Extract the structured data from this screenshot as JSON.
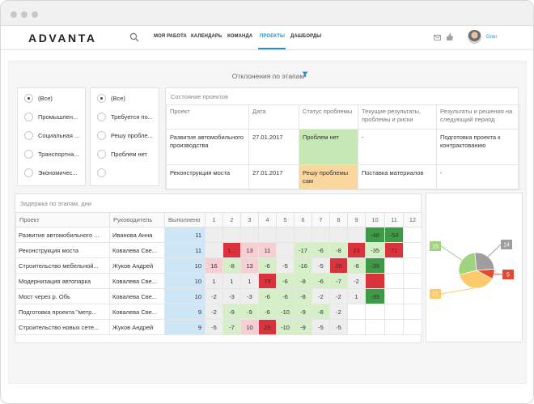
{
  "app": {
    "logo_text": "ADVANTA",
    "user_name": "Олег"
  },
  "nav": [
    {
      "label": "МОЯ РАБОТА"
    },
    {
      "label": "КАЛЕНДАРЬ"
    },
    {
      "label": "КОМАНДА"
    },
    {
      "label": "ПРОЕКТЫ",
      "active": true
    },
    {
      "label": "ДАШБОРДЫ"
    }
  ],
  "page": {
    "title": "Отклонения по этапам"
  },
  "filter1": {
    "options": [
      {
        "label": "(Все)",
        "selected": true
      },
      {
        "label": "Промышлен...",
        "selected": false
      },
      {
        "label": "Социальная ...",
        "selected": false
      },
      {
        "label": "Транспортна...",
        "selected": false
      },
      {
        "label": "Экономичес...",
        "selected": false
      }
    ]
  },
  "filter2": {
    "options": [
      {
        "label": "(Все)",
        "selected": true
      },
      {
        "label": "Требуется по...",
        "selected": false
      },
      {
        "label": "Решу пробле...",
        "selected": false
      },
      {
        "label": "Проблем нет",
        "selected": false
      },
      {
        "label": "",
        "selected": false
      }
    ]
  },
  "status_panel": {
    "title": "Состояние проектов",
    "headers": [
      "Проект",
      "Дата",
      "Статус проблемы",
      "Текущие результаты, проблемы и риски",
      "Результаты и решения на следующий период"
    ],
    "rows": [
      {
        "project": "Развитие автомобильного производства",
        "date": "27.01.2017",
        "status": "Проблем нет",
        "current": "-",
        "next": "Подготовка проекта к контрактованию",
        "status_color": "#c5e8b4"
      },
      {
        "project": "Реконструкция моста",
        "date": "27.01.2017",
        "status": "Решу проблемы сам",
        "current": "Поставка материалов",
        "next": "-",
        "status_color": "#fbd7a0"
      }
    ]
  },
  "delay_panel": {
    "title": "Задержка по этапам, дни",
    "headers": [
      "Проект",
      "Руководитель",
      "Выполнено",
      "1",
      "2",
      "3",
      "4",
      "5",
      "6",
      "7",
      "8",
      "9",
      "10",
      "11",
      "12"
    ],
    "rows": [
      {
        "project": "Развитие автомобильного ...",
        "manager": "Иванова Анна",
        "done": "11",
        "cells": [
          {
            "v": "",
            "c": "g"
          },
          {
            "v": "",
            "c": "g"
          },
          {
            "v": "",
            "c": "g"
          },
          {
            "v": "",
            "c": "g"
          },
          {
            "v": "",
            "c": "g"
          },
          {
            "v": "",
            "c": "g"
          },
          {
            "v": "",
            "c": "g"
          },
          {
            "v": "",
            "c": "g"
          },
          {
            "v": "",
            "c": "g"
          },
          {
            "v": "-48",
            "c": "dg"
          },
          {
            "v": "-54",
            "c": "dg"
          },
          {
            "v": "",
            "c": "w"
          }
        ]
      },
      {
        "project": "Реконструкция моста",
        "manager": "Ковалева Све...",
        "done": "11",
        "cells": [
          {
            "v": "",
            "c": "g"
          },
          {
            "v": "1...",
            "c": "dr"
          },
          {
            "v": "13",
            "c": "lr"
          },
          {
            "v": "11",
            "c": "lr"
          },
          {
            "v": "",
            "c": "g"
          },
          {
            "v": "-17",
            "c": "lg"
          },
          {
            "v": "-6",
            "c": "lg"
          },
          {
            "v": "-8",
            "c": "lg"
          },
          {
            "v": "23",
            "c": "dr"
          },
          {
            "v": "-35",
            "c": "lg"
          },
          {
            "v": "71",
            "c": "dr"
          },
          {
            "v": "",
            "c": "w"
          }
        ]
      },
      {
        "project": "Строительство мебельной...",
        "manager": "Жуков Андрей",
        "done": "10",
        "cells": [
          {
            "v": "16",
            "c": "lr"
          },
          {
            "v": "-8",
            "c": "lg"
          },
          {
            "v": "13",
            "c": "lr"
          },
          {
            "v": "-6",
            "c": "lg"
          },
          {
            "v": "-5",
            "c": "g"
          },
          {
            "v": "-16",
            "c": "lg"
          },
          {
            "v": "-5",
            "c": "g"
          },
          {
            "v": "26",
            "c": "dr"
          },
          {
            "v": "-6",
            "c": "lg"
          },
          {
            "v": "-39",
            "c": "dg"
          },
          {
            "v": "",
            "c": "w"
          },
          {
            "v": "",
            "c": "w"
          }
        ]
      },
      {
        "project": "Модернизация автопарка",
        "manager": "Ковалева Све...",
        "done": "10",
        "cells": [
          {
            "v": "1",
            "c": "g"
          },
          {
            "v": "1",
            "c": "g"
          },
          {
            "v": "1",
            "c": "g"
          },
          {
            "v": "79",
            "c": "dr"
          },
          {
            "v": "-6",
            "c": "lg"
          },
          {
            "v": "-8",
            "c": "lg"
          },
          {
            "v": "-6",
            "c": "lg"
          },
          {
            "v": "-7",
            "c": "lg"
          },
          {
            "v": "-2",
            "c": "g"
          },
          {
            "v": "",
            "c": "dr"
          },
          {
            "v": "",
            "c": "w"
          },
          {
            "v": "",
            "c": "w"
          }
        ]
      },
      {
        "project": "Мост через р. Обь",
        "manager": "Ковалева Све...",
        "done": "10",
        "cells": [
          {
            "v": "-2",
            "c": "g"
          },
          {
            "v": "-3",
            "c": "g"
          },
          {
            "v": "-3",
            "c": "g"
          },
          {
            "v": "-6",
            "c": "lg"
          },
          {
            "v": "-6",
            "c": "lg"
          },
          {
            "v": "-8",
            "c": "lg"
          },
          {
            "v": "-2",
            "c": "g"
          },
          {
            "v": "-2",
            "c": "g"
          },
          {
            "v": "1",
            "c": "g"
          },
          {
            "v": "-39",
            "c": "dg"
          },
          {
            "v": "",
            "c": "w"
          },
          {
            "v": "",
            "c": "w"
          }
        ]
      },
      {
        "project": "Подготовка проекта \"метр...",
        "manager": "Ковалева Све...",
        "done": "9",
        "cells": [
          {
            "v": "-2",
            "c": "g"
          },
          {
            "v": "-9",
            "c": "lg"
          },
          {
            "v": "-9",
            "c": "lg"
          },
          {
            "v": "-6",
            "c": "lg"
          },
          {
            "v": "-10",
            "c": "lg"
          },
          {
            "v": "-9",
            "c": "lg"
          },
          {
            "v": "-8",
            "c": "lg"
          },
          {
            "v": "-2",
            "c": "g"
          },
          {
            "v": "",
            "c": "w"
          },
          {
            "v": "",
            "c": "w"
          },
          {
            "v": "",
            "c": "w"
          },
          {
            "v": "",
            "c": "w"
          }
        ]
      },
      {
        "project": "Строительство новых сете...",
        "manager": "Жуков Андрей",
        "done": "9",
        "cells": [
          {
            "v": "-5",
            "c": "g"
          },
          {
            "v": "-7",
            "c": "lg"
          },
          {
            "v": "10",
            "c": "lr"
          },
          {
            "v": "25",
            "c": "dr"
          },
          {
            "v": "-10",
            "c": "lg"
          },
          {
            "v": "-9",
            "c": "lg"
          },
          {
            "v": "-5",
            "c": "g"
          },
          {
            "v": "-5",
            "c": "g"
          },
          {
            "v": "",
            "c": "w"
          },
          {
            "v": "",
            "c": "w"
          },
          {
            "v": "",
            "c": "w"
          },
          {
            "v": "",
            "c": "w"
          }
        ]
      }
    ]
  },
  "colors": {
    "gray": "#eeeeee",
    "light_green": "#d6efc9",
    "dark_green": "#3e9a46",
    "light_red": "#f6cfd2",
    "dark_red": "#d9343e",
    "accent": "#2a8fd0"
  },
  "chart_data": {
    "type": "pie",
    "slices": [
      {
        "label": "14",
        "value": 14,
        "color": "#9e9e9e"
      },
      {
        "label": "5",
        "value": 5,
        "color": "#e4492f"
      },
      {
        "label": "21",
        "value": 21,
        "color": "#fcc96b"
      },
      {
        "label": "15",
        "value": 15,
        "color": "#9fd37e"
      }
    ]
  }
}
